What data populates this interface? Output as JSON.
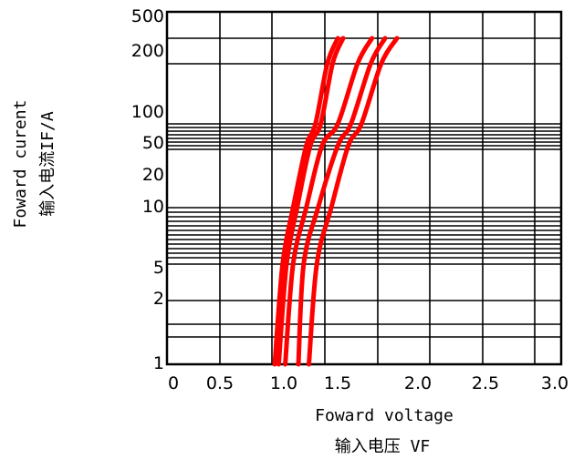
{
  "chart_data": {
    "type": "line",
    "title": "",
    "xlabel": "Foward voltage",
    "xlabel_cn": "输入电压 VF",
    "ylabel": "Foward curent",
    "ylabel_cn": "输入电流IF/A",
    "xlim": [
      0,
      3.0
    ],
    "x_ticks": [
      "0",
      "0.5",
      "1.0",
      "1.5",
      "2.0",
      "2.5",
      "3.0"
    ],
    "y_tick_labels": [
      "500",
      "200",
      "100",
      "50",
      "20",
      "10",
      "5",
      "2",
      "1"
    ],
    "grid": true,
    "series_color": "#ff0000",
    "series": [
      {
        "points": [
          [
            0.82,
            1
          ],
          [
            0.88,
            5
          ],
          [
            0.96,
            10
          ],
          [
            1.06,
            50
          ],
          [
            1.13,
            100
          ],
          [
            1.22,
            200
          ],
          [
            1.3,
            300
          ]
        ]
      },
      {
        "points": [
          [
            0.85,
            1
          ],
          [
            0.91,
            5
          ],
          [
            0.99,
            10
          ],
          [
            1.09,
            50
          ],
          [
            1.17,
            100
          ],
          [
            1.26,
            200
          ],
          [
            1.34,
            300
          ]
        ]
      },
      {
        "points": [
          [
            0.9,
            1
          ],
          [
            0.96,
            5
          ],
          [
            1.06,
            10
          ],
          [
            1.18,
            50
          ],
          [
            1.3,
            100
          ],
          [
            1.45,
            200
          ],
          [
            1.56,
            300
          ]
        ]
      },
      {
        "points": [
          [
            1.0,
            1
          ],
          [
            1.04,
            5
          ],
          [
            1.15,
            10
          ],
          [
            1.3,
            50
          ],
          [
            1.4,
            100
          ],
          [
            1.55,
            200
          ],
          [
            1.66,
            300
          ]
        ]
      },
      {
        "points": [
          [
            1.08,
            1
          ],
          [
            1.14,
            5
          ],
          [
            1.25,
            10
          ],
          [
            1.38,
            50
          ],
          [
            1.48,
            100
          ],
          [
            1.63,
            200
          ],
          [
            1.75,
            300
          ]
        ]
      }
    ]
  }
}
